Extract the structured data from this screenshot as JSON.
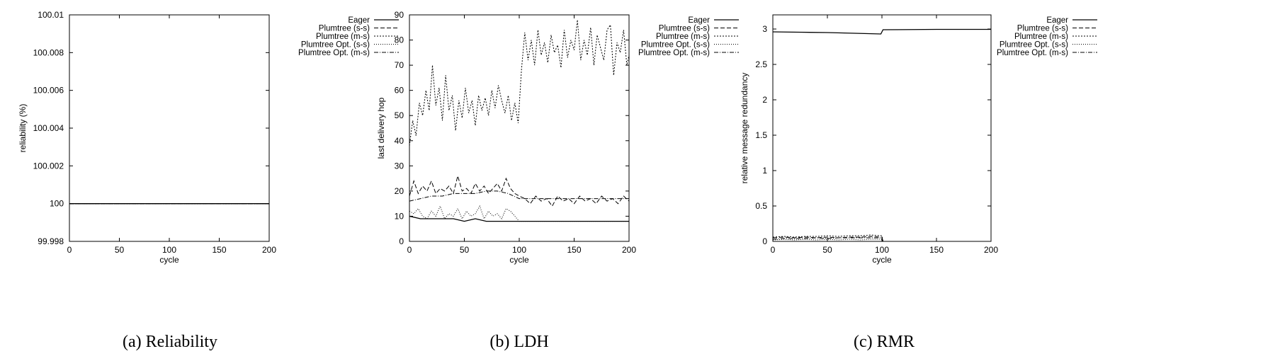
{
  "figure": {
    "subfigures": [
      {
        "caption": "(a)  Reliability"
      },
      {
        "caption": "(b)  LDH"
      },
      {
        "caption": "(c)  RMR"
      }
    ]
  },
  "chart_data": [
    {
      "type": "line",
      "xlabel": "cycle",
      "ylabel": "reliability (%)",
      "xlim": [
        0,
        200
      ],
      "ylim": [
        99.998,
        100.01
      ],
      "xticks": [
        "0",
        "50",
        "100",
        "150",
        "200"
      ],
      "yticks": [
        "99.998",
        "100",
        "100.002",
        "100.004",
        "100.006",
        "100.008",
        "100.01"
      ],
      "ytick_values": [
        99.998,
        100,
        100.002,
        100.004,
        100.006,
        100.008,
        100.01
      ],
      "legend_position": "outside-right",
      "series": [
        {
          "name": "Eager",
          "style": "solid",
          "x": [
            0,
            200
          ],
          "y": [
            100,
            100
          ]
        },
        {
          "name": "Plumtree (s-s)",
          "style": "dashed",
          "x": [
            0,
            200
          ],
          "y": [
            100,
            100
          ]
        },
        {
          "name": "Plumtree (m-s)",
          "style": "dotted",
          "x": [
            0,
            200
          ],
          "y": [
            100,
            100
          ]
        },
        {
          "name": "Plumtree Opt. (s-s)",
          "style": "fine-dotted",
          "x": [
            0,
            200
          ],
          "y": [
            100,
            100
          ]
        },
        {
          "name": "Plumtree Opt. (m-s)",
          "style": "dash-dot",
          "x": [
            0,
            200
          ],
          "y": [
            100,
            100
          ]
        }
      ]
    },
    {
      "type": "line",
      "xlabel": "cycle",
      "ylabel": "last delivery hop",
      "xlim": [
        0,
        200
      ],
      "ylim": [
        0,
        90
      ],
      "xticks": [
        "0",
        "50",
        "100",
        "150",
        "200"
      ],
      "yticks": [
        "0",
        "10",
        "20",
        "30",
        "40",
        "50",
        "60",
        "70",
        "80",
        "90"
      ],
      "ytick_values": [
        0,
        10,
        20,
        30,
        40,
        50,
        60,
        70,
        80,
        90
      ],
      "legend_position": "top-right",
      "series": [
        {
          "name": "Eager",
          "style": "solid",
          "x": [
            0,
            10,
            20,
            30,
            40,
            50,
            60,
            70,
            80,
            90,
            100,
            110,
            200
          ],
          "y": [
            10,
            9,
            9,
            9,
            9,
            8,
            9,
            8,
            8,
            8,
            8,
            8,
            8
          ]
        },
        {
          "name": "Plumtree (s-s)",
          "style": "dashed",
          "x": [
            0,
            4,
            8,
            12,
            16,
            20,
            24,
            28,
            32,
            36,
            40,
            44,
            48,
            52,
            56,
            60,
            64,
            68,
            72,
            76,
            80,
            84,
            88,
            92,
            96,
            100,
            105,
            110,
            115,
            120,
            125,
            130,
            135,
            140,
            145,
            150,
            155,
            160,
            165,
            170,
            175,
            180,
            185,
            190,
            195,
            200
          ],
          "y": [
            18,
            24,
            19,
            22,
            20,
            24,
            19,
            21,
            20,
            22,
            19,
            26,
            20,
            21,
            19,
            23,
            20,
            22,
            19,
            21,
            23,
            20,
            25,
            21,
            19,
            18,
            17,
            15,
            18,
            16,
            17,
            14,
            18,
            16,
            17,
            15,
            18,
            16,
            17,
            15,
            18,
            16,
            17,
            15,
            18,
            16
          ]
        },
        {
          "name": "Plumtree (m-s)",
          "style": "dotted",
          "x": [
            0,
            3,
            6,
            9,
            12,
            15,
            18,
            21,
            24,
            27,
            30,
            33,
            36,
            39,
            42,
            45,
            48,
            51,
            54,
            57,
            60,
            63,
            66,
            69,
            72,
            75,
            78,
            81,
            84,
            87,
            90,
            93,
            96,
            99,
            102,
            105,
            108,
            111,
            114,
            117,
            120,
            123,
            126,
            129,
            132,
            135,
            138,
            141,
            144,
            147,
            150,
            153,
            156,
            159,
            162,
            165,
            168,
            171,
            174,
            177,
            180,
            183,
            186,
            189,
            192,
            195,
            198,
            200
          ],
          "y": [
            38,
            48,
            42,
            55,
            50,
            60,
            52,
            70,
            54,
            61,
            48,
            66,
            52,
            58,
            44,
            56,
            49,
            61,
            51,
            56,
            46,
            58,
            52,
            57,
            50,
            60,
            53,
            62,
            56,
            51,
            58,
            48,
            55,
            47,
            68,
            83,
            72,
            80,
            70,
            84,
            74,
            79,
            71,
            82,
            75,
            78,
            69,
            84,
            73,
            80,
            76,
            88,
            72,
            80,
            74,
            85,
            70,
            82,
            77,
            72,
            84,
            86,
            66,
            79,
            75,
            84,
            70,
            74
          ]
        },
        {
          "name": "Plumtree Opt. (s-s)",
          "style": "fine-dotted",
          "x": [
            0,
            4,
            8,
            12,
            16,
            20,
            24,
            28,
            32,
            36,
            40,
            44,
            48,
            52,
            56,
            60,
            64,
            68,
            72,
            76,
            80,
            84,
            88,
            92,
            96,
            100,
            110,
            200
          ],
          "y": [
            12,
            11,
            13,
            10,
            9,
            12,
            10,
            14,
            9,
            11,
            10,
            13,
            9,
            12,
            10,
            11,
            14,
            9,
            12,
            10,
            11,
            9,
            13,
            12,
            10,
            8,
            8,
            8
          ]
        },
        {
          "name": "Plumtree Opt. (m-s)",
          "style": "dash-dot",
          "x": [
            0,
            10,
            20,
            30,
            40,
            50,
            60,
            70,
            80,
            90,
            100,
            110,
            120,
            140,
            160,
            180,
            200
          ],
          "y": [
            16,
            17,
            18,
            18,
            19,
            19,
            19,
            20,
            20,
            19,
            17,
            17,
            17,
            17,
            17,
            17,
            17
          ]
        }
      ]
    },
    {
      "type": "line",
      "xlabel": "cycle",
      "ylabel": "relative message redundancy",
      "xlim": [
        0,
        200
      ],
      "ylim": [
        0,
        3.2
      ],
      "xticks": [
        "0",
        "50",
        "100",
        "150",
        "200"
      ],
      "yticks": [
        "0",
        "0.5",
        "1",
        "1.5",
        "2",
        "2.5",
        "3"
      ],
      "ytick_values": [
        0,
        0.5,
        1,
        1.5,
        2,
        2.5,
        3
      ],
      "legend_position": "outside-right",
      "series": [
        {
          "name": "Eager",
          "style": "solid",
          "x": [
            0,
            25,
            50,
            75,
            99,
            101,
            150,
            200
          ],
          "y": [
            2.96,
            2.955,
            2.95,
            2.94,
            2.93,
            2.99,
            2.995,
            2.995
          ]
        },
        {
          "name": "Plumtree (s-s)",
          "style": "dashed",
          "x": [
            0,
            10,
            20,
            30,
            40,
            50,
            60,
            70,
            80,
            90,
            100,
            101,
            200
          ],
          "y": [
            0.05,
            0.06,
            0.05,
            0.06,
            0.05,
            0.06,
            0.05,
            0.06,
            0.06,
            0.07,
            0.06,
            0.0,
            0.0
          ]
        },
        {
          "name": "Plumtree (m-s)",
          "style": "dotted",
          "x": [
            0,
            10,
            20,
            30,
            40,
            50,
            60,
            70,
            80,
            90,
            100,
            101,
            200
          ],
          "y": [
            0.06,
            0.07,
            0.06,
            0.07,
            0.07,
            0.08,
            0.07,
            0.08,
            0.08,
            0.09,
            0.08,
            0.0,
            0.0
          ]
        },
        {
          "name": "Plumtree Opt. (s-s)",
          "style": "fine-dotted",
          "x": [
            0,
            10,
            20,
            30,
            40,
            50,
            60,
            70,
            80,
            90,
            100,
            101,
            200
          ],
          "y": [
            0.02,
            0.03,
            0.02,
            0.03,
            0.02,
            0.03,
            0.02,
            0.03,
            0.02,
            0.03,
            0.03,
            0.0,
            0.0
          ]
        },
        {
          "name": "Plumtree Opt. (m-s)",
          "style": "dash-dot",
          "x": [
            0,
            10,
            20,
            30,
            40,
            50,
            60,
            70,
            80,
            90,
            100,
            101,
            200
          ],
          "y": [
            0.03,
            0.04,
            0.04,
            0.04,
            0.05,
            0.04,
            0.05,
            0.05,
            0.05,
            0.05,
            0.05,
            0.0,
            0.0
          ]
        }
      ]
    }
  ]
}
